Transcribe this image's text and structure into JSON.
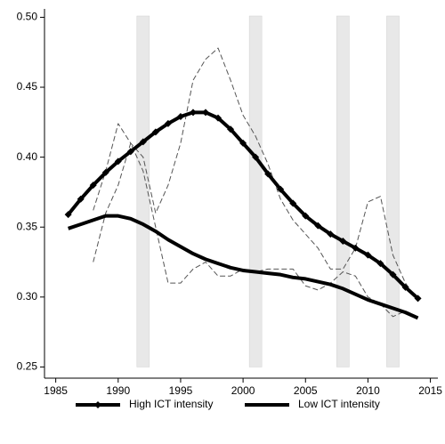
{
  "chart_data": {
    "type": "line",
    "x": [
      1986,
      1987,
      1988,
      1989,
      1990,
      1991,
      1992,
      1993,
      1994,
      1995,
      1996,
      1997,
      1998,
      1999,
      2000,
      2001,
      2002,
      2003,
      2004,
      2005,
      2006,
      2007,
      2008,
      2009,
      2010,
      2011,
      2012,
      2013,
      2014
    ],
    "series": [
      {
        "name": "High ICT intensity",
        "color": "#000000",
        "style": "thick-diamond",
        "values": [
          0.359,
          0.37,
          0.38,
          0.389,
          0.397,
          0.404,
          0.411,
          0.418,
          0.424,
          0.429,
          0.432,
          0.432,
          0.428,
          0.42,
          0.41,
          0.4,
          0.388,
          0.377,
          0.367,
          0.358,
          0.351,
          0.345,
          0.34,
          0.335,
          0.33,
          0.324,
          0.316,
          0.307,
          0.299
        ]
      },
      {
        "name": "Low ICT intensity",
        "color": "#000000",
        "style": "thick",
        "values": [
          0.349,
          0.352,
          0.355,
          0.358,
          0.358,
          0.356,
          0.352,
          0.347,
          0.341,
          0.336,
          0.331,
          0.327,
          0.324,
          0.321,
          0.319,
          0.318,
          0.317,
          0.316,
          0.314,
          0.313,
          0.311,
          0.309,
          0.306,
          0.302,
          0.298,
          0.295,
          0.292,
          0.289,
          0.285
        ]
      },
      {
        "color": "#555555",
        "style": "dashed",
        "values": [
          null,
          null,
          0.362,
          0.39,
          0.424,
          0.41,
          0.4,
          0.36,
          0.38,
          0.41,
          0.455,
          0.47,
          0.478,
          0.455,
          0.43,
          0.415,
          0.395,
          0.37,
          0.355,
          0.345,
          0.335,
          0.32,
          0.32,
          0.335,
          0.368,
          0.372,
          0.33,
          0.31,
          0.298
        ]
      },
      {
        "color": "#555555",
        "style": "dashed",
        "values": [
          null,
          null,
          0.325,
          0.36,
          0.38,
          0.41,
          0.39,
          0.35,
          0.31,
          0.31,
          0.32,
          0.325,
          0.315,
          0.315,
          0.32,
          0.318,
          0.32,
          0.32,
          0.32,
          0.308,
          0.305,
          0.31,
          0.318,
          0.315,
          0.3,
          0.295,
          0.286,
          0.29,
          0.286
        ]
      }
    ],
    "shaded_ranges": [
      [
        1991.5,
        1992.5
      ],
      [
        2000.5,
        2001.5
      ],
      [
        2007.5,
        2008.5
      ],
      [
        2011.5,
        2012.5
      ]
    ],
    "shade_color": "#e8e8e8",
    "xlim": [
      1984.1,
      2015.6
    ],
    "xticks": [
      1985,
      1990,
      1995,
      2000,
      2005,
      2010,
      2015
    ],
    "ylim": [
      0.242,
      0.506
    ],
    "yticks": [
      {
        "value": 0.25,
        "label": "0.25"
      },
      {
        "value": 0.3,
        "label": "0.30"
      },
      {
        "value": 0.35,
        "label": "0.35"
      },
      {
        "value": 0.4,
        "label": "0.40"
      },
      {
        "value": 0.45,
        "label": "0.45"
      },
      {
        "value": 0.5,
        "label": "0.50"
      }
    ],
    "legend": "bottom"
  }
}
